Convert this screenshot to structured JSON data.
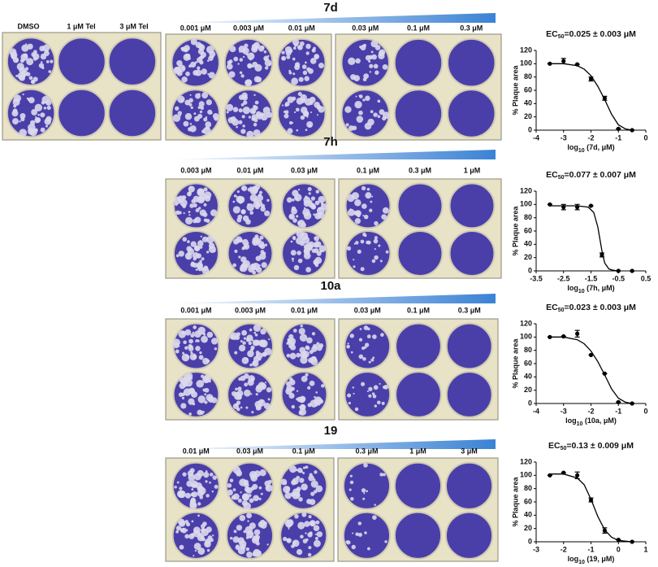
{
  "control_labels": [
    "DMSO",
    "1 μM Tel",
    "3 μM Tel"
  ],
  "panels": [
    {
      "compound": "7d",
      "doses": [
        "0.001 μM",
        "0.003 μM",
        "0.01 μM",
        "0.03 μM",
        "0.1 μM",
        "0.3 μM"
      ]
    },
    {
      "compound": "7h",
      "doses": [
        "0.003 μM",
        "0.01 μM",
        "0.03 μM",
        "0.1 μM",
        "0.3 μM",
        "1 μM"
      ]
    },
    {
      "compound": "10a",
      "doses": [
        "0.001 μM",
        "0.003 μM",
        "0.01 μM",
        "0.03 μM",
        "0.1 μM",
        "0.3 μM"
      ]
    },
    {
      "compound": "19",
      "doses": [
        "0.01 μM",
        "0.03  μM",
        "0.1 μM",
        "0.3 μM",
        "1 μM",
        "3 μM"
      ]
    }
  ],
  "chart_data": [
    {
      "type": "scatter",
      "title": {
        "main": "EC",
        "sub": "50",
        "tail": "=0.025 ± 0.003 μM"
      },
      "y_label": "% Plaque area",
      "x_label": {
        "main": "log",
        "sub": "10",
        "tail": " (7d, μM)"
      },
      "xlim": [
        -4,
        0
      ],
      "xticks": [
        -4,
        -3,
        -2,
        -1,
        0
      ],
      "ylim": [
        0,
        120
      ],
      "yticks": [
        0,
        20,
        40,
        60,
        80,
        100,
        120
      ],
      "series": [
        {
          "type": "scatter",
          "color": "#000000",
          "x": [
            -3.5,
            -3,
            -2.5,
            -2,
            -1.5,
            -1,
            -0.5
          ],
          "values": [
            100,
            104,
            99,
            77,
            48,
            2,
            0
          ],
          "errors": [
            0,
            4,
            0,
            3,
            3,
            0,
            0
          ]
        },
        {
          "type": "line",
          "color": "#000000",
          "x": [
            -3.5,
            -3,
            -2.5,
            -2.25,
            -2,
            -1.75,
            -1.5,
            -1.25,
            -1,
            -0.75,
            -0.5
          ],
          "values": [
            100,
            100,
            97,
            92,
            82,
            66,
            46,
            24,
            8,
            2,
            0
          ]
        }
      ]
    },
    {
      "type": "scatter",
      "title": {
        "main": "EC",
        "sub": "50",
        "tail": "=0.077 ± 0.007 μM"
      },
      "y_label": "% Plaque area",
      "x_label": {
        "main": "log",
        "sub": "10",
        "tail": " (7h, μM)"
      },
      "xlim": [
        -3.5,
        0.5
      ],
      "xticks": [
        -3.5,
        -2.5,
        -1.5,
        -0.5,
        0.5
      ],
      "ylim": [
        0,
        120
      ],
      "yticks": [
        0,
        20,
        40,
        60,
        80,
        100,
        120
      ],
      "series": [
        {
          "type": "scatter",
          "color": "#000000",
          "x": [
            -3,
            -2.5,
            -2,
            -1.5,
            -1.1,
            -0.5,
            0
          ],
          "values": [
            100,
            96,
            96,
            98,
            24,
            0,
            0
          ],
          "errors": [
            0,
            4,
            4,
            0,
            3,
            0,
            0
          ]
        },
        {
          "type": "line",
          "color": "#000000",
          "x": [
            -3,
            -2,
            -1.6,
            -1.4,
            -1.25,
            -1.1,
            -1,
            -0.85,
            -0.7,
            -0.5
          ],
          "values": [
            98,
            98,
            96,
            88,
            66,
            30,
            12,
            3,
            1,
            0
          ]
        }
      ]
    },
    {
      "type": "scatter",
      "title": {
        "main": "EC",
        "sub": "50",
        "tail": "=0.023 ± 0.003 μM"
      },
      "y_label": "% Plaque area",
      "x_label": {
        "main": "log",
        "sub": "10",
        "tail": " (10a, μM)"
      },
      "xlim": [
        -4,
        0
      ],
      "xticks": [
        -4,
        -3,
        -2,
        -1,
        0
      ],
      "ylim": [
        0,
        120
      ],
      "yticks": [
        0,
        20,
        40,
        60,
        80,
        100,
        120
      ],
      "series": [
        {
          "type": "scatter",
          "color": "#000000",
          "x": [
            -3.5,
            -3,
            -2.5,
            -2,
            -1.5,
            -1,
            -0.5
          ],
          "values": [
            100,
            101,
            105,
            73,
            45,
            2,
            0
          ],
          "errors": [
            0,
            0,
            5,
            0,
            0,
            0,
            0
          ]
        },
        {
          "type": "line",
          "color": "#000000",
          "x": [
            -3.5,
            -3,
            -2.5,
            -2.25,
            -2,
            -1.75,
            -1.5,
            -1.25,
            -1,
            -0.75,
            -0.5
          ],
          "values": [
            100,
            100,
            96,
            90,
            79,
            63,
            43,
            22,
            8,
            2,
            0
          ]
        }
      ]
    },
    {
      "type": "scatter",
      "title": {
        "main": "EC",
        "sub": "50",
        "tail": "=0.13 ± 0.009 μM"
      },
      "y_label": "% Plaque area",
      "x_label": {
        "main": "log",
        "sub": "10",
        "tail": " (19, μM)"
      },
      "xlim": [
        -3,
        1
      ],
      "xticks": [
        -3,
        -2,
        -1,
        0,
        1
      ],
      "ylim": [
        0,
        120
      ],
      "yticks": [
        0,
        20,
        40,
        60,
        80,
        100,
        120
      ],
      "series": [
        {
          "type": "scatter",
          "color": "#000000",
          "x": [
            -2.5,
            -2,
            -1.5,
            -1,
            -0.5,
            0,
            0.5
          ],
          "values": [
            100,
            104,
            100,
            63,
            17,
            3,
            0
          ],
          "errors": [
            0,
            0,
            5,
            3,
            4,
            0,
            0
          ]
        },
        {
          "type": "line",
          "color": "#000000",
          "x": [
            -2.5,
            -2,
            -1.5,
            -1.25,
            -1,
            -0.75,
            -0.5,
            -0.25,
            0,
            0.5
          ],
          "values": [
            102,
            102,
            96,
            86,
            64,
            38,
            18,
            7,
            2,
            0
          ]
        }
      ]
    }
  ]
}
